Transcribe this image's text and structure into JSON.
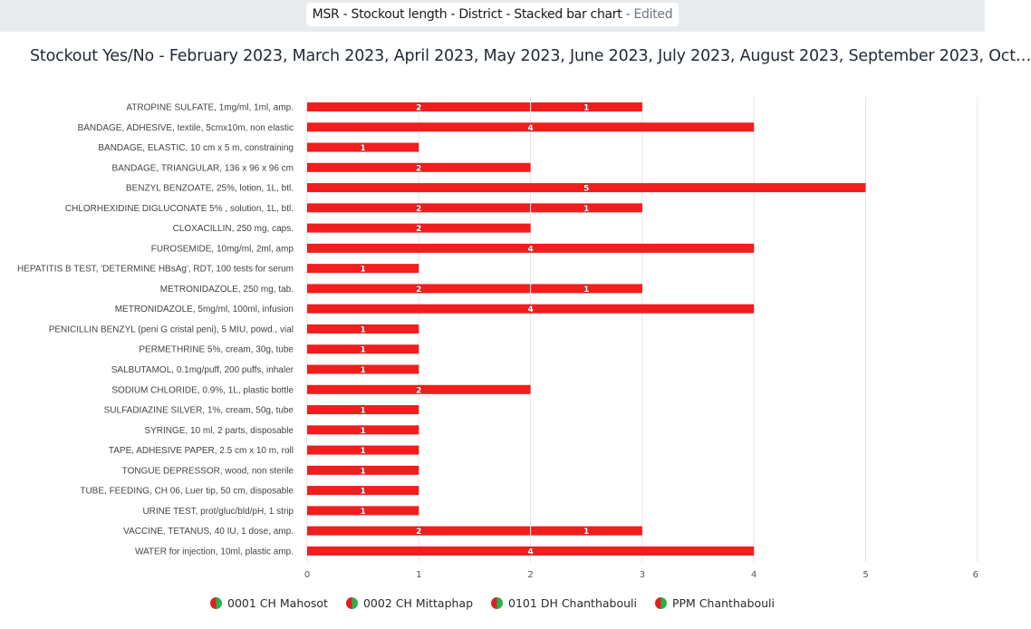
{
  "header": {
    "title": "MSR - Stockout length - District - Stacked bar chart",
    "edited": " - Edited"
  },
  "chart_title": "Stockout Yes/No - February 2023, March 2023, April 2023, May 2023, June 2023, July 2023, August 2023, September 2023, Oct…",
  "colors": {
    "bar": "#f21d1d",
    "legend_left": "#e02020",
    "legend_right": "#27b34a"
  },
  "legend": [
    {
      "label": "0001 CH Mahosot"
    },
    {
      "label": "0002 CH Mittaphap"
    },
    {
      "label": "0101 DH Chanthabouli"
    },
    {
      "label": "PPM Chanthabouli"
    }
  ],
  "chart_data": {
    "type": "bar",
    "orientation": "horizontal",
    "stacked": true,
    "xlim": [
      0,
      6
    ],
    "xticks": [
      0,
      1,
      2,
      3,
      4,
      5,
      6
    ],
    "categories": [
      "ATROPINE SULFATE, 1mg/ml, 1ml, amp.",
      "BANDAGE, ADHESIVE, textile, 5cmx10m, non elastic",
      "BANDAGE, ELASTIC, 10 cm x 5 m, constraining",
      "BANDAGE, TRIANGULAR, 136 x 96 x 96 cm",
      "BENZYL BENZOATE, 25%, lotion, 1L, btl.",
      "CHLORHEXIDINE DIGLUCONATE 5% , solution, 1L, btl.",
      "CLOXACILLIN, 250 mg, caps.",
      "FUROSEMIDE, 10mg/ml, 2ml, amp",
      "HEPATITIS B TEST, 'DETERMINE HBsAg', RDT, 100 tests for serum",
      "METRONIDAZOLE, 250 mg, tab.",
      "METRONIDAZOLE, 5mg/ml, 100ml, infusion",
      "PENICILLIN BENZYL (peni G cristal peni), 5 MIU, powd., vial",
      "PERMETHRINE 5%, cream, 30g, tube",
      "SALBUTAMOL, 0.1mg/puff, 200 puffs, inhaler",
      "SODIUM CHLORIDE, 0.9%, 1L, plastic bottle",
      "SULFADIAZINE SILVER, 1%, cream, 50g, tube",
      "SYRINGE, 10 ml, 2 parts, disposable",
      "TAPE, ADHESIVE PAPER, 2.5 cm x 10 m, roll",
      "TONGUE DEPRESSOR, wood, non sterile",
      "TUBE, FEEDING, CH 06, Luer tip, 50 cm, disposable",
      "URINE TEST, prot/gluc/bld/pH, 1 strip",
      "VACCINE, TETANUS, 40 IU, 1 dose, amp.",
      "WATER for injection, 10ml, plastic amp."
    ],
    "segments": [
      [
        2,
        1
      ],
      [
        4
      ],
      [
        1
      ],
      [
        2
      ],
      [
        5
      ],
      [
        2,
        1
      ],
      [
        2
      ],
      [
        4
      ],
      [
        1
      ],
      [
        2,
        1
      ],
      [
        4
      ],
      [
        1
      ],
      [
        1
      ],
      [
        1
      ],
      [
        2
      ],
      [
        1
      ],
      [
        1
      ],
      [
        1
      ],
      [
        1
      ],
      [
        1
      ],
      [
        1
      ],
      [
        2,
        1
      ],
      [
        4
      ]
    ]
  }
}
